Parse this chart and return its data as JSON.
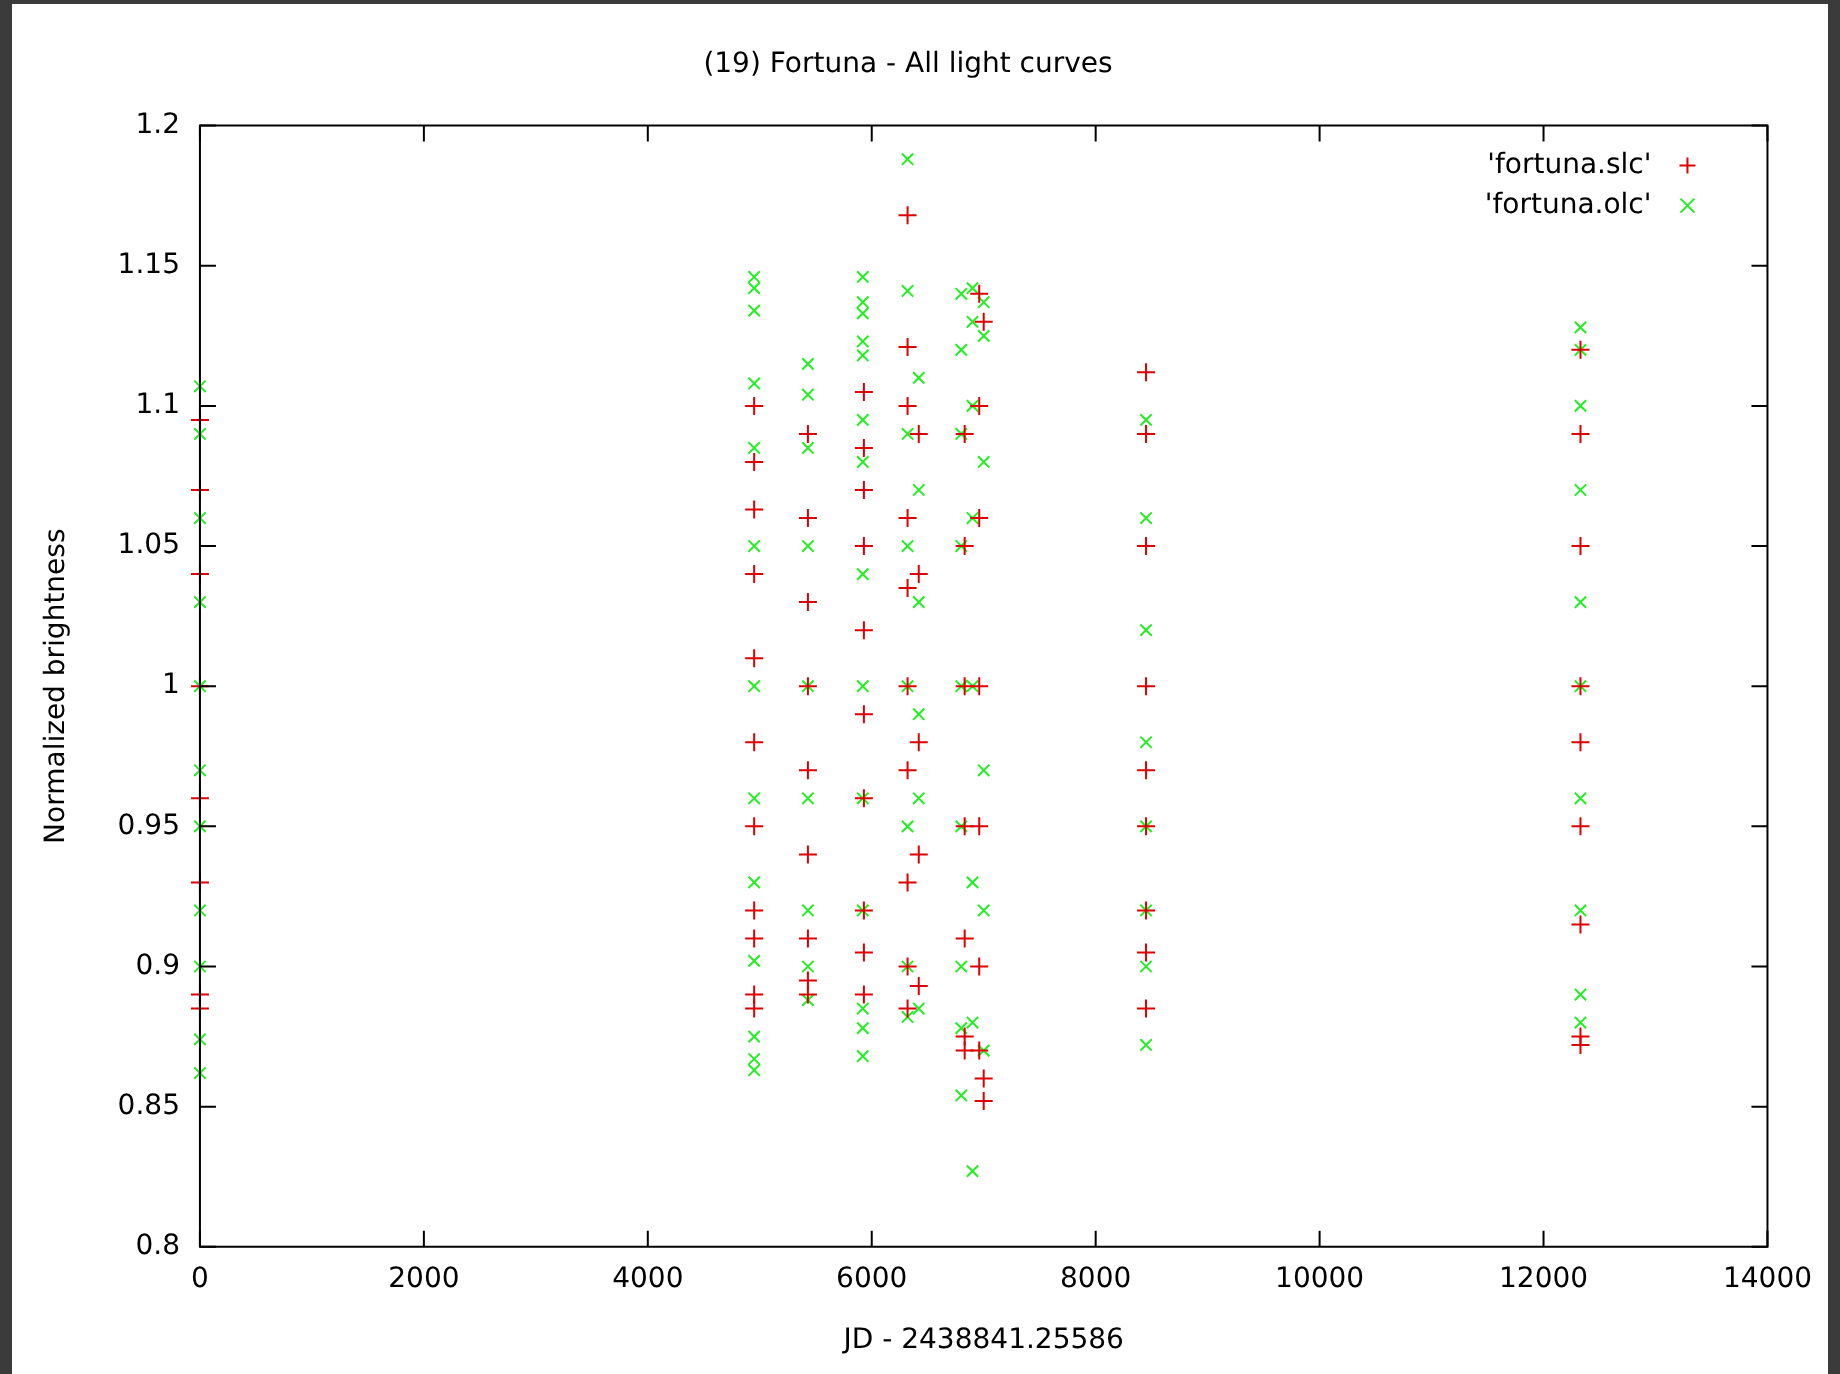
{
  "chart_data": {
    "type": "scatter",
    "title": "(19) Fortuna - All light curves",
    "xlabel": "JD - 2438841.25586",
    "ylabel": "Normalized brightness",
    "xlim": [
      0,
      14000
    ],
    "xticks": [
      0,
      2000,
      4000,
      6000,
      8000,
      10000,
      12000,
      14000
    ],
    "ylim": [
      0.8,
      1.2
    ],
    "yticks": [
      0.8,
      0.85,
      0.9,
      0.95,
      1,
      1.05,
      1.1,
      1.15,
      1.2
    ],
    "legend": "top right",
    "series": [
      {
        "name": "'fortuna.slc'",
        "color": "#dd0000",
        "marker": "plus",
        "x": [
          0,
          0,
          0,
          0,
          0,
          0,
          0,
          0,
          4950,
          4950,
          4950,
          4950,
          4950,
          4950,
          4950,
          4950,
          4950,
          4950,
          4950,
          5430,
          5430,
          5430,
          5430,
          5430,
          5430,
          5430,
          5430,
          5430,
          5930,
          5930,
          5930,
          5930,
          5930,
          5930,
          5930,
          5930,
          5930,
          5930,
          6320,
          6320,
          6320,
          6320,
          6320,
          6320,
          6320,
          6320,
          6320,
          6320,
          6420,
          6420,
          6420,
          6420,
          6420,
          6830,
          6830,
          6830,
          6830,
          6830,
          6830,
          6830,
          6960,
          6960,
          6960,
          6960,
          6960,
          6960,
          6960,
          7000,
          7000,
          7000,
          8450,
          8450,
          8450,
          8450,
          8450,
          8450,
          8450,
          8450,
          8450,
          12330,
          12330,
          12330,
          12330,
          12330,
          12330,
          12330,
          12330,
          12330
        ],
        "values": [
          1.095,
          1.07,
          1.04,
          1.0,
          0.96,
          0.93,
          0.89,
          0.885,
          1.1,
          1.08,
          1.063,
          1.04,
          1.01,
          0.98,
          0.95,
          0.92,
          0.91,
          0.89,
          0.885,
          1.09,
          1.06,
          1.03,
          1.0,
          0.97,
          0.94,
          0.91,
          0.895,
          0.89,
          1.105,
          1.085,
          1.07,
          1.05,
          1.02,
          0.99,
          0.96,
          0.92,
          0.905,
          0.89,
          1.168,
          1.121,
          1.1,
          1.06,
          1.035,
          1.0,
          0.97,
          0.93,
          0.9,
          0.885,
          1.09,
          1.04,
          0.98,
          0.94,
          0.893,
          1.09,
          1.05,
          1.0,
          0.95,
          0.91,
          0.875,
          0.87,
          1.14,
          1.1,
          1.06,
          1.0,
          0.95,
          0.9,
          0.87,
          1.13,
          0.86,
          0.852,
          1.112,
          1.09,
          1.05,
          1.0,
          0.97,
          0.95,
          0.92,
          0.905,
          0.885,
          1.12,
          1.09,
          1.05,
          1.0,
          0.98,
          0.95,
          0.915,
          0.875,
          0.872
        ]
      },
      {
        "name": "'fortuna.olc'",
        "color": "#22ee22",
        "marker": "cross",
        "x": [
          0,
          0,
          0,
          0,
          0,
          0,
          0,
          0,
          0,
          0,
          0,
          4950,
          4950,
          4950,
          4950,
          4950,
          4950,
          4950,
          4950,
          4950,
          4950,
          4950,
          4950,
          4950,
          5430,
          5430,
          5430,
          5430,
          5430,
          5430,
          5430,
          5430,
          5430,
          5920,
          5920,
          5920,
          5920,
          5920,
          5920,
          5920,
          5920,
          5920,
          5920,
          5920,
          5920,
          5920,
          5920,
          6320,
          6320,
          6320,
          6320,
          6320,
          6320,
          6320,
          6320,
          6420,
          6420,
          6420,
          6420,
          6420,
          6420,
          6800,
          6800,
          6800,
          6800,
          6800,
          6800,
          6800,
          6800,
          6800,
          6900,
          6900,
          6900,
          6900,
          6900,
          6900,
          6900,
          6900,
          7000,
          7000,
          7000,
          7000,
          7000,
          7000,
          8450,
          8450,
          8450,
          8450,
          8450,
          8450,
          8450,
          8450,
          12330,
          12330,
          12330,
          12330,
          12330,
          12330,
          12330,
          12330,
          12330,
          12330
        ],
        "values": [
          1.107,
          1.09,
          1.06,
          1.03,
          1.0,
          0.97,
          0.95,
          0.92,
          0.9,
          0.874,
          0.862,
          1.146,
          1.142,
          1.134,
          1.108,
          1.085,
          1.05,
          1.0,
          0.96,
          0.93,
          0.902,
          0.875,
          0.867,
          0.863,
          1.115,
          1.104,
          1.085,
          1.05,
          1.0,
          0.96,
          0.92,
          0.9,
          0.888,
          1.146,
          1.137,
          1.133,
          1.123,
          1.118,
          1.095,
          1.08,
          1.04,
          1.0,
          0.96,
          0.92,
          0.885,
          0.878,
          0.868,
          1.188,
          1.141,
          1.09,
          1.05,
          1.0,
          0.95,
          0.9,
          0.882,
          1.11,
          1.07,
          1.03,
          0.99,
          0.96,
          0.885,
          1.14,
          1.12,
          1.09,
          1.05,
          1.0,
          0.95,
          0.9,
          0.878,
          0.854,
          1.142,
          1.13,
          1.1,
          1.06,
          1.0,
          0.93,
          0.88,
          0.827,
          1.137,
          1.125,
          1.08,
          0.97,
          0.92,
          0.87,
          1.095,
          1.06,
          1.02,
          0.98,
          0.95,
          0.92,
          0.9,
          0.872,
          1.128,
          1.12,
          1.1,
          1.07,
          1.03,
          1.0,
          0.96,
          0.92,
          0.89,
          0.88
        ]
      }
    ]
  }
}
